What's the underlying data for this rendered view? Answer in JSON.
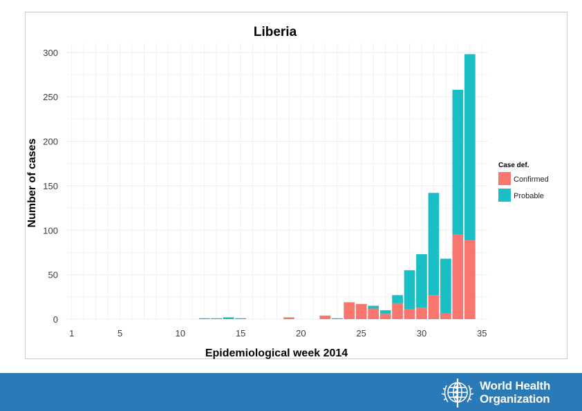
{
  "chart_data": {
    "type": "bar",
    "stacked": true,
    "title": "Liberia",
    "xlabel": "Epidemiological week 2014",
    "ylabel": "Number of cases",
    "xlim": [
      0.5,
      35.5
    ],
    "ylim": [
      0,
      310
    ],
    "xticks": [
      1,
      5,
      10,
      15,
      20,
      25,
      30,
      35
    ],
    "yticks": [
      0,
      50,
      100,
      150,
      200,
      250,
      300
    ],
    "grid": true,
    "legend": {
      "title": "Case def.",
      "position": "right",
      "entries": [
        {
          "label": "Confirmed",
          "color": "#f8766d"
        },
        {
          "label": "Probable",
          "color": "#19bfc4"
        }
      ]
    },
    "weeks": [
      12,
      13,
      14,
      15,
      19,
      22,
      23,
      24,
      25,
      26,
      27,
      28,
      29,
      30,
      31,
      32,
      33,
      34
    ],
    "series": [
      {
        "name": "Confirmed",
        "color": "#f8766d",
        "values": [
          0,
          0,
          0,
          0,
          2,
          4,
          0,
          19,
          17,
          12,
          6,
          18,
          11,
          13,
          27,
          7,
          95,
          89
        ]
      },
      {
        "name": "Probable",
        "color": "#19bfc4",
        "values": [
          1,
          1,
          2,
          1,
          0,
          0,
          1,
          0,
          0,
          3,
          4,
          9,
          44,
          60,
          115,
          61,
          163,
          209
        ]
      }
    ]
  },
  "footer": {
    "org_line1": "World Health",
    "org_line2": "Organization",
    "background": "#2a7ab7",
    "logo_icon": "who-emblem-icon"
  }
}
